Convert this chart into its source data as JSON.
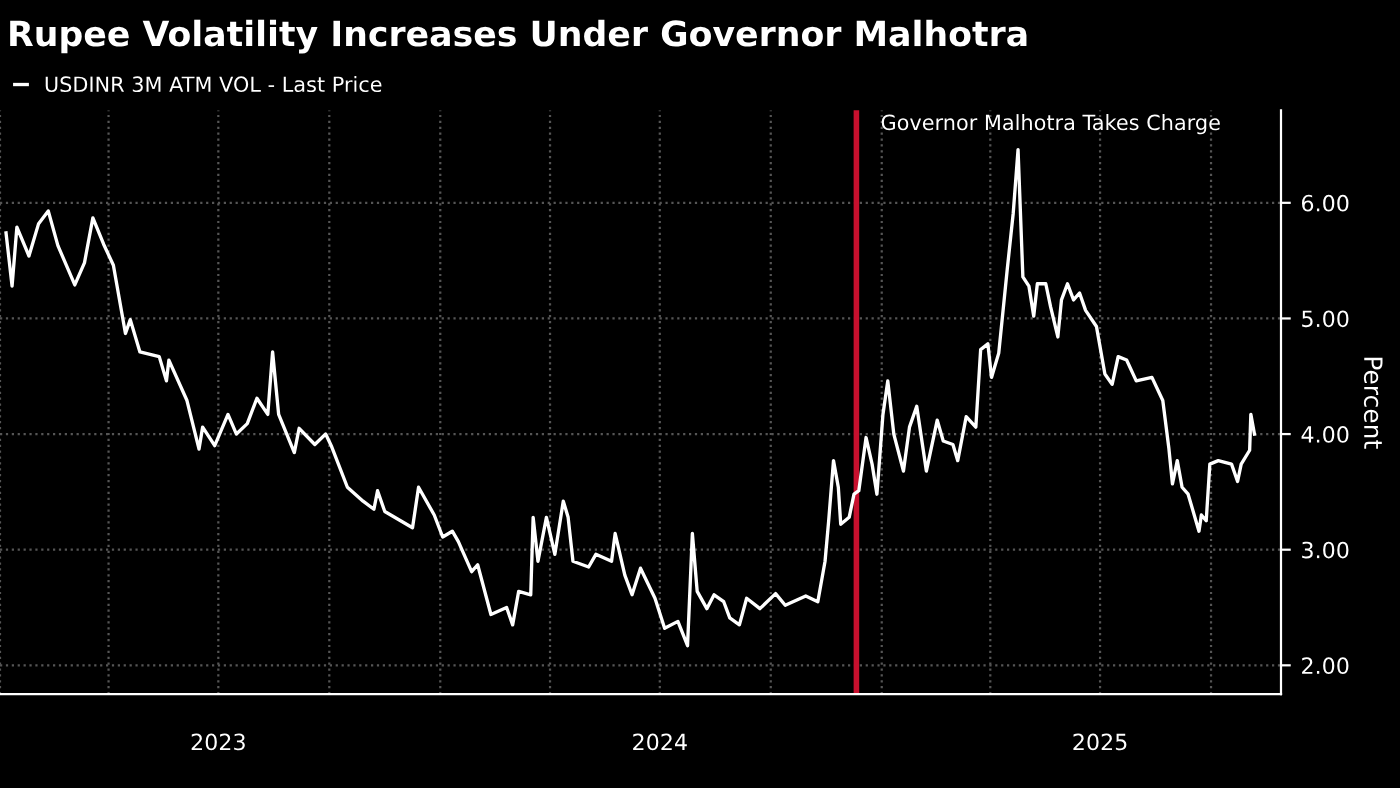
{
  "chart_data": {
    "type": "line",
    "title": "Rupee Volatility Increases Under Governor Malhotra",
    "ylabel": "Percent",
    "x": [
      "2023-01-06",
      "2023-01-11",
      "2023-01-15",
      "2023-01-25",
      "2023-02-02",
      "2023-02-10",
      "2023-02-18",
      "2023-03-04",
      "2023-03-12",
      "2023-03-19",
      "2023-03-28",
      "2023-04-05",
      "2023-04-15",
      "2023-04-19",
      "2023-04-27",
      "2023-05-13",
      "2023-05-19",
      "2023-05-21",
      "2023-06-05",
      "2023-06-15",
      "2023-06-18",
      "2023-06-28",
      "2023-07-09",
      "2023-07-16",
      "2023-07-25",
      "2023-08-02",
      "2023-08-11",
      "2023-08-15",
      "2023-08-20",
      "2023-09-02",
      "2023-09-06",
      "2023-09-19",
      "2023-09-28",
      "2023-10-03",
      "2023-10-16",
      "2023-10-29",
      "2023-11-07",
      "2023-11-10",
      "2023-11-16",
      "2023-12-09",
      "2023-12-14",
      "2023-12-27",
      "2024-01-03",
      "2024-01-11",
      "2024-01-16",
      "2024-01-27",
      "2024-02-01",
      "2024-02-12",
      "2024-02-25",
      "2024-03-01",
      "2024-03-06",
      "2024-03-16",
      "2024-03-18",
      "2024-03-22",
      "2024-03-29",
      "2024-04-05",
      "2024-04-12",
      "2024-04-16",
      "2024-04-20",
      "2024-05-03",
      "2024-05-09",
      "2024-05-22",
      "2024-05-25",
      "2024-06-02",
      "2024-06-08",
      "2024-06-15",
      "2024-06-27",
      "2024-07-05",
      "2024-07-16",
      "2024-07-24",
      "2024-07-28",
      "2024-08-01",
      "2024-08-09",
      "2024-08-15",
      "2024-08-23",
      "2024-08-28",
      "2024-09-05",
      "2024-09-11",
      "2024-09-22",
      "2024-10-05",
      "2024-10-13",
      "2024-10-30",
      "2024-11-09",
      "2024-11-15",
      "2024-11-18",
      "2024-11-22",
      "2024-11-26",
      "2024-11-28",
      "2024-12-05",
      "2024-12-09",
      "2024-12-13",
      "2024-12-19",
      "2024-12-24",
      "2024-12-28",
      "2025-01-02",
      "2025-01-06",
      "2025-01-11",
      "2025-01-19",
      "2025-01-24",
      "2025-01-30",
      "2025-02-07",
      "2025-02-16",
      "2025-02-21",
      "2025-03-01",
      "2025-03-05",
      "2025-03-12",
      "2025-03-20",
      "2025-03-24",
      "2025-03-30",
      "2025-04-02",
      "2025-04-08",
      "2025-04-15",
      "2025-04-20",
      "2025-04-24",
      "2025-04-28",
      "2025-05-03",
      "2025-05-07",
      "2025-05-10",
      "2025-05-17",
      "2025-05-21",
      "2025-05-27",
      "2025-05-30",
      "2025-06-04",
      "2025-06-09",
      "2025-06-14",
      "2025-06-19",
      "2025-06-28",
      "2025-07-05",
      "2025-07-11",
      "2025-07-16",
      "2025-07-23",
      "2025-07-31",
      "2025-08-13",
      "2025-08-22",
      "2025-08-27",
      "2025-08-30",
      "2025-09-03",
      "2025-09-07",
      "2025-09-12",
      "2025-09-21",
      "2025-09-23",
      "2025-09-27",
      "2025-09-30",
      "2025-10-07",
      "2025-10-18",
      "2025-10-23",
      "2025-10-26",
      "2025-11-02",
      "2025-11-03",
      "2025-11-06"
    ],
    "series": [
      {
        "name": "USDINR 3M ATM VOL - Last Price",
        "color": "#ffffff",
        "values": [
          5.74,
          5.28,
          5.79,
          5.54,
          5.82,
          5.93,
          5.63,
          5.29,
          5.48,
          5.87,
          5.64,
          5.46,
          4.87,
          4.99,
          4.71,
          4.67,
          4.46,
          4.64,
          4.29,
          3.87,
          4.06,
          3.9,
          4.17,
          4.0,
          4.09,
          4.31,
          4.17,
          4.71,
          4.17,
          3.84,
          4.05,
          3.91,
          4.0,
          3.89,
          3.54,
          3.42,
          3.35,
          3.51,
          3.33,
          3.19,
          3.54,
          3.3,
          3.11,
          3.16,
          3.07,
          2.81,
          2.87,
          2.44,
          2.5,
          2.35,
          2.64,
          2.61,
          3.28,
          2.9,
          3.28,
          2.96,
          3.42,
          3.28,
          2.9,
          2.85,
          2.96,
          2.9,
          3.14,
          2.78,
          2.61,
          2.84,
          2.58,
          2.32,
          2.38,
          2.17,
          3.14,
          2.64,
          2.49,
          2.61,
          2.55,
          2.41,
          2.35,
          2.58,
          2.49,
          2.62,
          2.52,
          2.6,
          2.55,
          2.9,
          3.25,
          3.77,
          3.54,
          3.22,
          3.28,
          3.48,
          3.51,
          3.97,
          3.74,
          3.48,
          4.17,
          4.46,
          4.0,
          3.68,
          4.06,
          4.24,
          3.68,
          4.12,
          3.94,
          3.91,
          3.77,
          4.15,
          4.06,
          4.73,
          4.78,
          4.49,
          4.7,
          5.42,
          5.91,
          6.46,
          5.36,
          5.28,
          5.02,
          5.3,
          5.3,
          5.1,
          4.84,
          5.16,
          5.3,
          5.16,
          5.22,
          5.07,
          4.93,
          4.52,
          4.43,
          4.67,
          4.64,
          4.46,
          4.49,
          4.29,
          3.88,
          3.57,
          3.77,
          3.54,
          3.48,
          3.16,
          3.3,
          3.25,
          3.74,
          3.77,
          3.74,
          3.59,
          3.74,
          3.86,
          4.17,
          4.0
        ]
      }
    ],
    "xlim": [
      "2023-01-01",
      "2025-11-28"
    ],
    "xticks": [
      {
        "value": "2023-01-01",
        "label": null
      },
      {
        "value": "2023-04-01",
        "label": null
      },
      {
        "value": "2023-07-01",
        "label": "2023"
      },
      {
        "value": "2023-10-01",
        "label": null
      },
      {
        "value": "2024-01-01",
        "label": null
      },
      {
        "value": "2024-04-01",
        "label": null
      },
      {
        "value": "2024-07-01",
        "label": "2024"
      },
      {
        "value": "2024-10-01",
        "label": null
      },
      {
        "value": "2025-01-01",
        "label": null
      },
      {
        "value": "2025-04-01",
        "label": null
      },
      {
        "value": "2025-07-01",
        "label": "2025"
      },
      {
        "value": "2025-10-01",
        "label": null
      }
    ],
    "ylim": [
      1.75,
      6.8
    ],
    "yticks": [
      {
        "value": 2,
        "label": "2.00"
      },
      {
        "value": 3,
        "label": "3.00"
      },
      {
        "value": 4,
        "label": "4.00"
      },
      {
        "value": 5,
        "label": "5.00"
      },
      {
        "value": 6,
        "label": "6.00"
      }
    ],
    "ref_lines": [
      {
        "axis": "x",
        "value": "2024-12-11",
        "label": "Governor Malhotra Takes Charge",
        "color": "#c8102e"
      }
    ],
    "grid": true,
    "legend": "top left",
    "line_style": "solid",
    "marker": "none"
  }
}
